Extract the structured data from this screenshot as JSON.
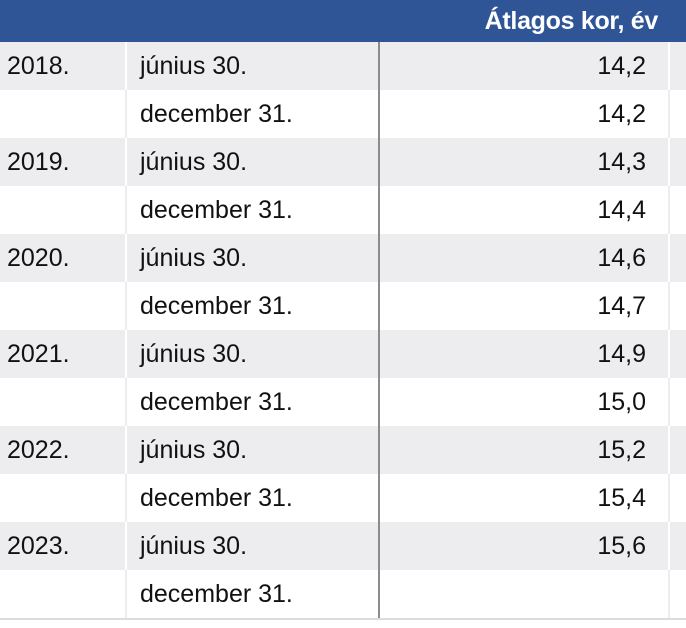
{
  "header": {
    "title": "Átlagos kor, év"
  },
  "rows": [
    {
      "year": "2018.",
      "date": "június 30.",
      "value": "14,2"
    },
    {
      "year": "",
      "date": "december 31.",
      "value": "14,2"
    },
    {
      "year": "2019.",
      "date": "június 30.",
      "value": "14,3"
    },
    {
      "year": "",
      "date": "december 31.",
      "value": "14,4"
    },
    {
      "year": "2020.",
      "date": "június 30.",
      "value": "14,6"
    },
    {
      "year": "",
      "date": "december 31.",
      "value": "14,7"
    },
    {
      "year": "2021.",
      "date": "június 30.",
      "value": "14,9"
    },
    {
      "year": "",
      "date": "december 31.",
      "value": "15,0"
    },
    {
      "year": "2022.",
      "date": "június 30.",
      "value": "15,2"
    },
    {
      "year": "",
      "date": "december 31.",
      "value": "15,4"
    },
    {
      "year": "2023.",
      "date": "június 30.",
      "value": "15,6"
    },
    {
      "year": "",
      "date": "december 31.",
      "value": ""
    }
  ]
}
